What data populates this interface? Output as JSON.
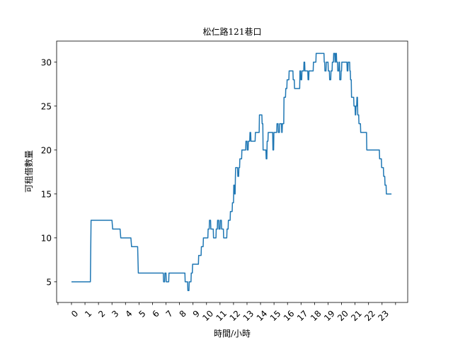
{
  "chart_data": {
    "type": "line",
    "title": "松仁路121巷口",
    "xlabel": "時間/小時",
    "ylabel": "可租借數量",
    "xlim": [
      -1.1,
      24.9
    ],
    "ylim": [
      2.65,
      32.4
    ],
    "grid": false,
    "line_color": "#1f77b4",
    "x_ticks": [
      "0",
      "1",
      "2",
      "3",
      "4",
      "5",
      "6",
      "7",
      "8",
      "9",
      "10",
      "11",
      "12",
      "13",
      "14",
      "15",
      "16",
      "17",
      "18",
      "19",
      "20",
      "21",
      "22",
      "23"
    ],
    "y_ticks": [
      5,
      10,
      15,
      20,
      25,
      30
    ],
    "series": [
      {
        "points": [
          [
            0,
            5
          ],
          [
            1.4,
            5
          ],
          [
            1.45,
            12
          ],
          [
            3,
            12
          ],
          [
            3.05,
            11
          ],
          [
            3.6,
            11
          ],
          [
            3.65,
            10
          ],
          [
            4.4,
            10
          ],
          [
            4.45,
            9
          ],
          [
            4.9,
            9
          ],
          [
            4.95,
            6
          ],
          [
            6.8,
            6
          ],
          [
            6.82,
            5
          ],
          [
            6.9,
            5
          ],
          [
            6.92,
            6
          ],
          [
            7,
            6
          ],
          [
            7.02,
            5
          ],
          [
            7.2,
            5
          ],
          [
            7.22,
            6
          ],
          [
            8.4,
            6
          ],
          [
            8.42,
            5
          ],
          [
            8.6,
            5
          ],
          [
            8.62,
            4
          ],
          [
            8.7,
            4
          ],
          [
            8.72,
            5
          ],
          [
            8.85,
            5
          ],
          [
            8.87,
            6
          ],
          [
            8.95,
            6
          ],
          [
            8.97,
            7
          ],
          [
            9.4,
            7
          ],
          [
            9.42,
            8
          ],
          [
            9.6,
            8
          ],
          [
            9.62,
            9
          ],
          [
            9.75,
            9
          ],
          [
            9.77,
            10
          ],
          [
            10.1,
            10
          ],
          [
            10.12,
            11
          ],
          [
            10.2,
            11
          ],
          [
            10.22,
            12
          ],
          [
            10.3,
            12
          ],
          [
            10.32,
            11
          ],
          [
            10.5,
            11
          ],
          [
            10.52,
            10
          ],
          [
            10.7,
            10
          ],
          [
            10.72,
            11
          ],
          [
            10.8,
            11
          ],
          [
            10.82,
            12
          ],
          [
            10.9,
            12
          ],
          [
            10.92,
            11
          ],
          [
            11,
            11
          ],
          [
            11.02,
            12
          ],
          [
            11.1,
            12
          ],
          [
            11.12,
            11
          ],
          [
            11.25,
            11
          ],
          [
            11.27,
            10
          ],
          [
            11.5,
            10
          ],
          [
            11.52,
            11
          ],
          [
            11.6,
            11
          ],
          [
            11.62,
            12
          ],
          [
            11.75,
            12
          ],
          [
            11.77,
            13
          ],
          [
            11.9,
            13
          ],
          [
            11.92,
            14
          ],
          [
            12,
            14
          ],
          [
            12.02,
            16
          ],
          [
            12.07,
            16
          ],
          [
            12.09,
            15
          ],
          [
            12.12,
            15
          ],
          [
            12.14,
            17
          ],
          [
            12.16,
            18
          ],
          [
            12.3,
            18
          ],
          [
            12.32,
            17
          ],
          [
            12.38,
            17
          ],
          [
            12.4,
            18
          ],
          [
            12.45,
            18
          ],
          [
            12.47,
            19
          ],
          [
            12.6,
            19
          ],
          [
            12.62,
            20
          ],
          [
            12.9,
            20
          ],
          [
            12.92,
            21
          ],
          [
            13,
            21
          ],
          [
            13.02,
            20
          ],
          [
            13.08,
            20
          ],
          [
            13.1,
            21
          ],
          [
            13.2,
            21
          ],
          [
            13.22,
            22
          ],
          [
            13.27,
            22
          ],
          [
            13.29,
            21
          ],
          [
            13.6,
            21
          ],
          [
            13.62,
            22
          ],
          [
            13.9,
            22
          ],
          [
            13.92,
            24
          ],
          [
            14.1,
            24
          ],
          [
            14.12,
            23
          ],
          [
            14.17,
            23
          ],
          [
            14.19,
            20
          ],
          [
            14.4,
            20
          ],
          [
            14.42,
            19
          ],
          [
            14.47,
            19
          ],
          [
            14.49,
            21
          ],
          [
            14.55,
            21
          ],
          [
            14.57,
            22
          ],
          [
            14.9,
            22
          ],
          [
            14.92,
            20
          ],
          [
            14.97,
            20
          ],
          [
            14.99,
            22
          ],
          [
            15.2,
            22
          ],
          [
            15.22,
            23
          ],
          [
            15.3,
            23
          ],
          [
            15.32,
            22
          ],
          [
            15.4,
            22
          ],
          [
            15.42,
            23
          ],
          [
            15.55,
            23
          ],
          [
            15.57,
            22
          ],
          [
            15.6,
            22
          ],
          [
            15.62,
            23
          ],
          [
            15.72,
            23
          ],
          [
            15.74,
            26
          ],
          [
            15.85,
            26
          ],
          [
            15.87,
            27
          ],
          [
            15.95,
            27
          ],
          [
            15.97,
            28
          ],
          [
            16.1,
            28
          ],
          [
            16.12,
            29
          ],
          [
            16.4,
            29
          ],
          [
            16.42,
            28
          ],
          [
            16.5,
            28
          ],
          [
            16.52,
            27
          ],
          [
            16.9,
            27
          ],
          [
            16.92,
            29
          ],
          [
            16.97,
            29
          ],
          [
            16.99,
            28
          ],
          [
            17.05,
            28
          ],
          [
            17.07,
            29
          ],
          [
            17.2,
            29
          ],
          [
            17.22,
            30
          ],
          [
            17.27,
            30
          ],
          [
            17.29,
            29
          ],
          [
            17.5,
            29
          ],
          [
            17.52,
            28
          ],
          [
            17.57,
            28
          ],
          [
            17.59,
            29
          ],
          [
            17.9,
            29
          ],
          [
            17.92,
            30
          ],
          [
            18.1,
            30
          ],
          [
            18.12,
            31
          ],
          [
            18.7,
            31
          ],
          [
            18.72,
            30
          ],
          [
            18.75,
            30
          ],
          [
            18.77,
            29
          ],
          [
            18.85,
            29
          ],
          [
            18.87,
            30
          ],
          [
            19,
            30
          ],
          [
            19.02,
            29
          ],
          [
            19.1,
            29
          ],
          [
            19.12,
            28
          ],
          [
            19.2,
            28
          ],
          [
            19.22,
            29
          ],
          [
            19.3,
            29
          ],
          [
            19.32,
            30
          ],
          [
            19.4,
            30
          ],
          [
            19.42,
            31
          ],
          [
            19.5,
            31
          ],
          [
            19.52,
            30
          ],
          [
            19.55,
            30
          ],
          [
            19.57,
            31
          ],
          [
            19.62,
            31
          ],
          [
            19.64,
            30
          ],
          [
            19.7,
            30
          ],
          [
            19.72,
            29
          ],
          [
            19.8,
            29
          ],
          [
            19.82,
            30
          ],
          [
            19.85,
            30
          ],
          [
            19.87,
            28
          ],
          [
            19.95,
            28
          ],
          [
            19.97,
            29
          ],
          [
            20,
            29
          ],
          [
            20.02,
            30
          ],
          [
            20.4,
            30
          ],
          [
            20.42,
            29
          ],
          [
            20.47,
            29
          ],
          [
            20.49,
            30
          ],
          [
            20.6,
            30
          ],
          [
            20.62,
            29
          ],
          [
            20.65,
            29
          ],
          [
            20.67,
            28
          ],
          [
            20.72,
            28
          ],
          [
            20.74,
            26
          ],
          [
            20.9,
            26
          ],
          [
            20.92,
            25
          ],
          [
            21,
            25
          ],
          [
            21.02,
            24
          ],
          [
            21.05,
            24
          ],
          [
            21.07,
            25
          ],
          [
            21.12,
            25
          ],
          [
            21.14,
            26
          ],
          [
            21.18,
            26
          ],
          [
            21.2,
            24
          ],
          [
            21.27,
            24
          ],
          [
            21.29,
            23
          ],
          [
            21.4,
            23
          ],
          [
            21.42,
            22
          ],
          [
            21.85,
            22
          ],
          [
            21.87,
            20
          ],
          [
            22.8,
            20
          ],
          [
            22.82,
            19
          ],
          [
            22.95,
            19
          ],
          [
            22.97,
            18
          ],
          [
            23.1,
            18
          ],
          [
            23.12,
            17
          ],
          [
            23.2,
            17
          ],
          [
            23.22,
            16
          ],
          [
            23.3,
            16
          ],
          [
            23.32,
            15
          ],
          [
            23.7,
            15
          ]
        ]
      }
    ]
  }
}
